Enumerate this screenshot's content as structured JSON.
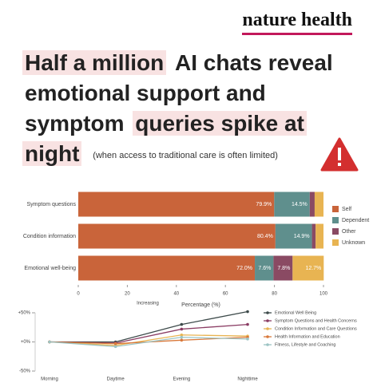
{
  "brand": "nature health",
  "headline": [
    [
      {
        "text": "Half a million",
        "highlight": true
      },
      {
        "text": "AI chats reveal",
        "highlight": false
      }
    ],
    [
      {
        "text": "emotional support and",
        "highlight": false
      }
    ],
    [
      {
        "text": "symptom",
        "highlight": false
      },
      {
        "text": "queries spike at",
        "highlight": true
      }
    ],
    [
      {
        "text": "night",
        "highlight": true
      }
    ]
  ],
  "note": "(when access to traditional care is often limited)",
  "chart_data": [
    {
      "type": "stacked_barh",
      "categories": [
        "Symptom questions",
        "Condition information",
        "Emotional well-being"
      ],
      "series": [
        {
          "name": "Self",
          "color": "#c9643a",
          "values": [
            79.9,
            80.4,
            72.0
          ],
          "value_labels": [
            "79.9%",
            "80.4%",
            "72.0%"
          ]
        },
        {
          "name": "Dependent",
          "color": "#5f8f8d",
          "values": [
            14.5,
            14.9,
            7.6
          ],
          "value_labels": [
            "14.5%",
            "14.9%",
            "7.6%"
          ]
        },
        {
          "name": "Other",
          "color": "#8a4a63",
          "values": [
            2.0,
            1.5,
            7.8
          ],
          "value_labels": [
            null,
            null,
            "7.8%"
          ]
        },
        {
          "name": "Unknown",
          "color": "#e8b452",
          "values": [
            3.6,
            3.2,
            12.7
          ],
          "value_labels": [
            null,
            null,
            "12.7%"
          ]
        }
      ],
      "xlabel": "Percentage (%)",
      "xlim": [
        0,
        100
      ],
      "xticks": [
        0,
        20,
        40,
        60,
        80,
        100
      ]
    },
    {
      "type": "line",
      "title": "Increasing",
      "categories": [
        "Morning",
        "Daytime",
        "Evening",
        "Nighttime"
      ],
      "series": [
        {
          "name": "Emotional Well Being",
          "color": "#3d4a4a",
          "values": [
            0,
            0,
            30,
            52
          ]
        },
        {
          "name": "Symptom Questions and Health Concerns",
          "color": "#8a3c63",
          "values": [
            0,
            -2,
            22,
            30
          ]
        },
        {
          "name": "Condition Information and Care Questions",
          "color": "#e8b452",
          "values": [
            0,
            -6,
            12,
            10
          ]
        },
        {
          "name": "Health Information and Education",
          "color": "#d9783a",
          "values": [
            0,
            -3,
            3,
            8
          ]
        },
        {
          "name": "Fitness, Lifestyle and Coaching",
          "color": "#9cc4c4",
          "values": [
            0,
            -8,
            8,
            5
          ]
        }
      ],
      "ylim": [
        -50,
        50
      ],
      "yticks": [
        {
          "value": 50,
          "label": "+50%"
        },
        {
          "value": 0,
          "label": "+0%"
        },
        {
          "value": -50,
          "label": "-50%"
        }
      ]
    }
  ]
}
